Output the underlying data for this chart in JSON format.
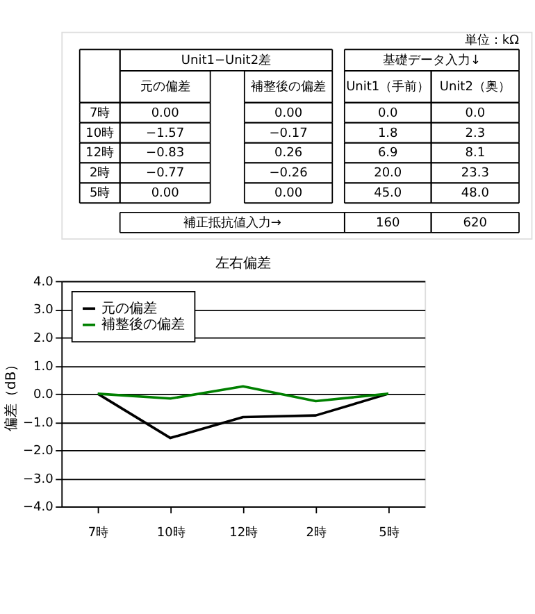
{
  "chart_data": [
    {
      "type": "other",
      "annotations": [
        "単位：kΩ",
        "Unit1−Unit2差",
        "基礎データ入力↓",
        "元の偏差",
        "補整後の偏差",
        "Unit1（手前）",
        "Unit2（奥）",
        "7時",
        "0.00",
        "0.00",
        "0.0",
        "0.0",
        "10時",
        "−1.57",
        "−0.17",
        "1.8",
        "2.3",
        "12時",
        "−0.83",
        "0.26",
        "6.9",
        "8.1",
        "2時",
        "−0.77",
        "−0.26",
        "20.0",
        "23.3",
        "5時",
        "0.00",
        "0.00",
        "45.0",
        "48.0",
        "補正抵抗値入力→",
        "160",
        "620"
      ]
    },
    {
      "type": "line",
      "title": "左右偏差",
      "ylabel": "偏差（dB）",
      "categories": [
        "7時",
        "10時",
        "12時",
        "2時",
        "5時"
      ],
      "series": [
        {
          "name": "元の偏差",
          "color": "#000000",
          "values": [
            0.0,
            -1.57,
            -0.83,
            -0.77,
            0.0
          ]
        },
        {
          "name": "補整後の偏差",
          "color": "#008000",
          "values": [
            0.0,
            -0.17,
            0.26,
            -0.26,
            0.0
          ]
        }
      ],
      "ylim": [
        -4,
        4
      ],
      "yticks": [
        {
          "value": -4,
          "label": "−4.0"
        },
        {
          "value": -3,
          "label": "−3.0"
        },
        {
          "value": -2,
          "label": "−2.0"
        },
        {
          "value": -1,
          "label": "−1.0"
        },
        {
          "value": 0,
          "label": "0.0"
        },
        {
          "value": 1,
          "label": "1.0"
        },
        {
          "value": 2,
          "label": "2.0"
        },
        {
          "value": 3,
          "label": "3.0"
        },
        {
          "value": 4,
          "label": "4.0"
        }
      ],
      "grid": "y",
      "legend": "top left",
      "marker": "none",
      "line_style": "solid"
    }
  ]
}
